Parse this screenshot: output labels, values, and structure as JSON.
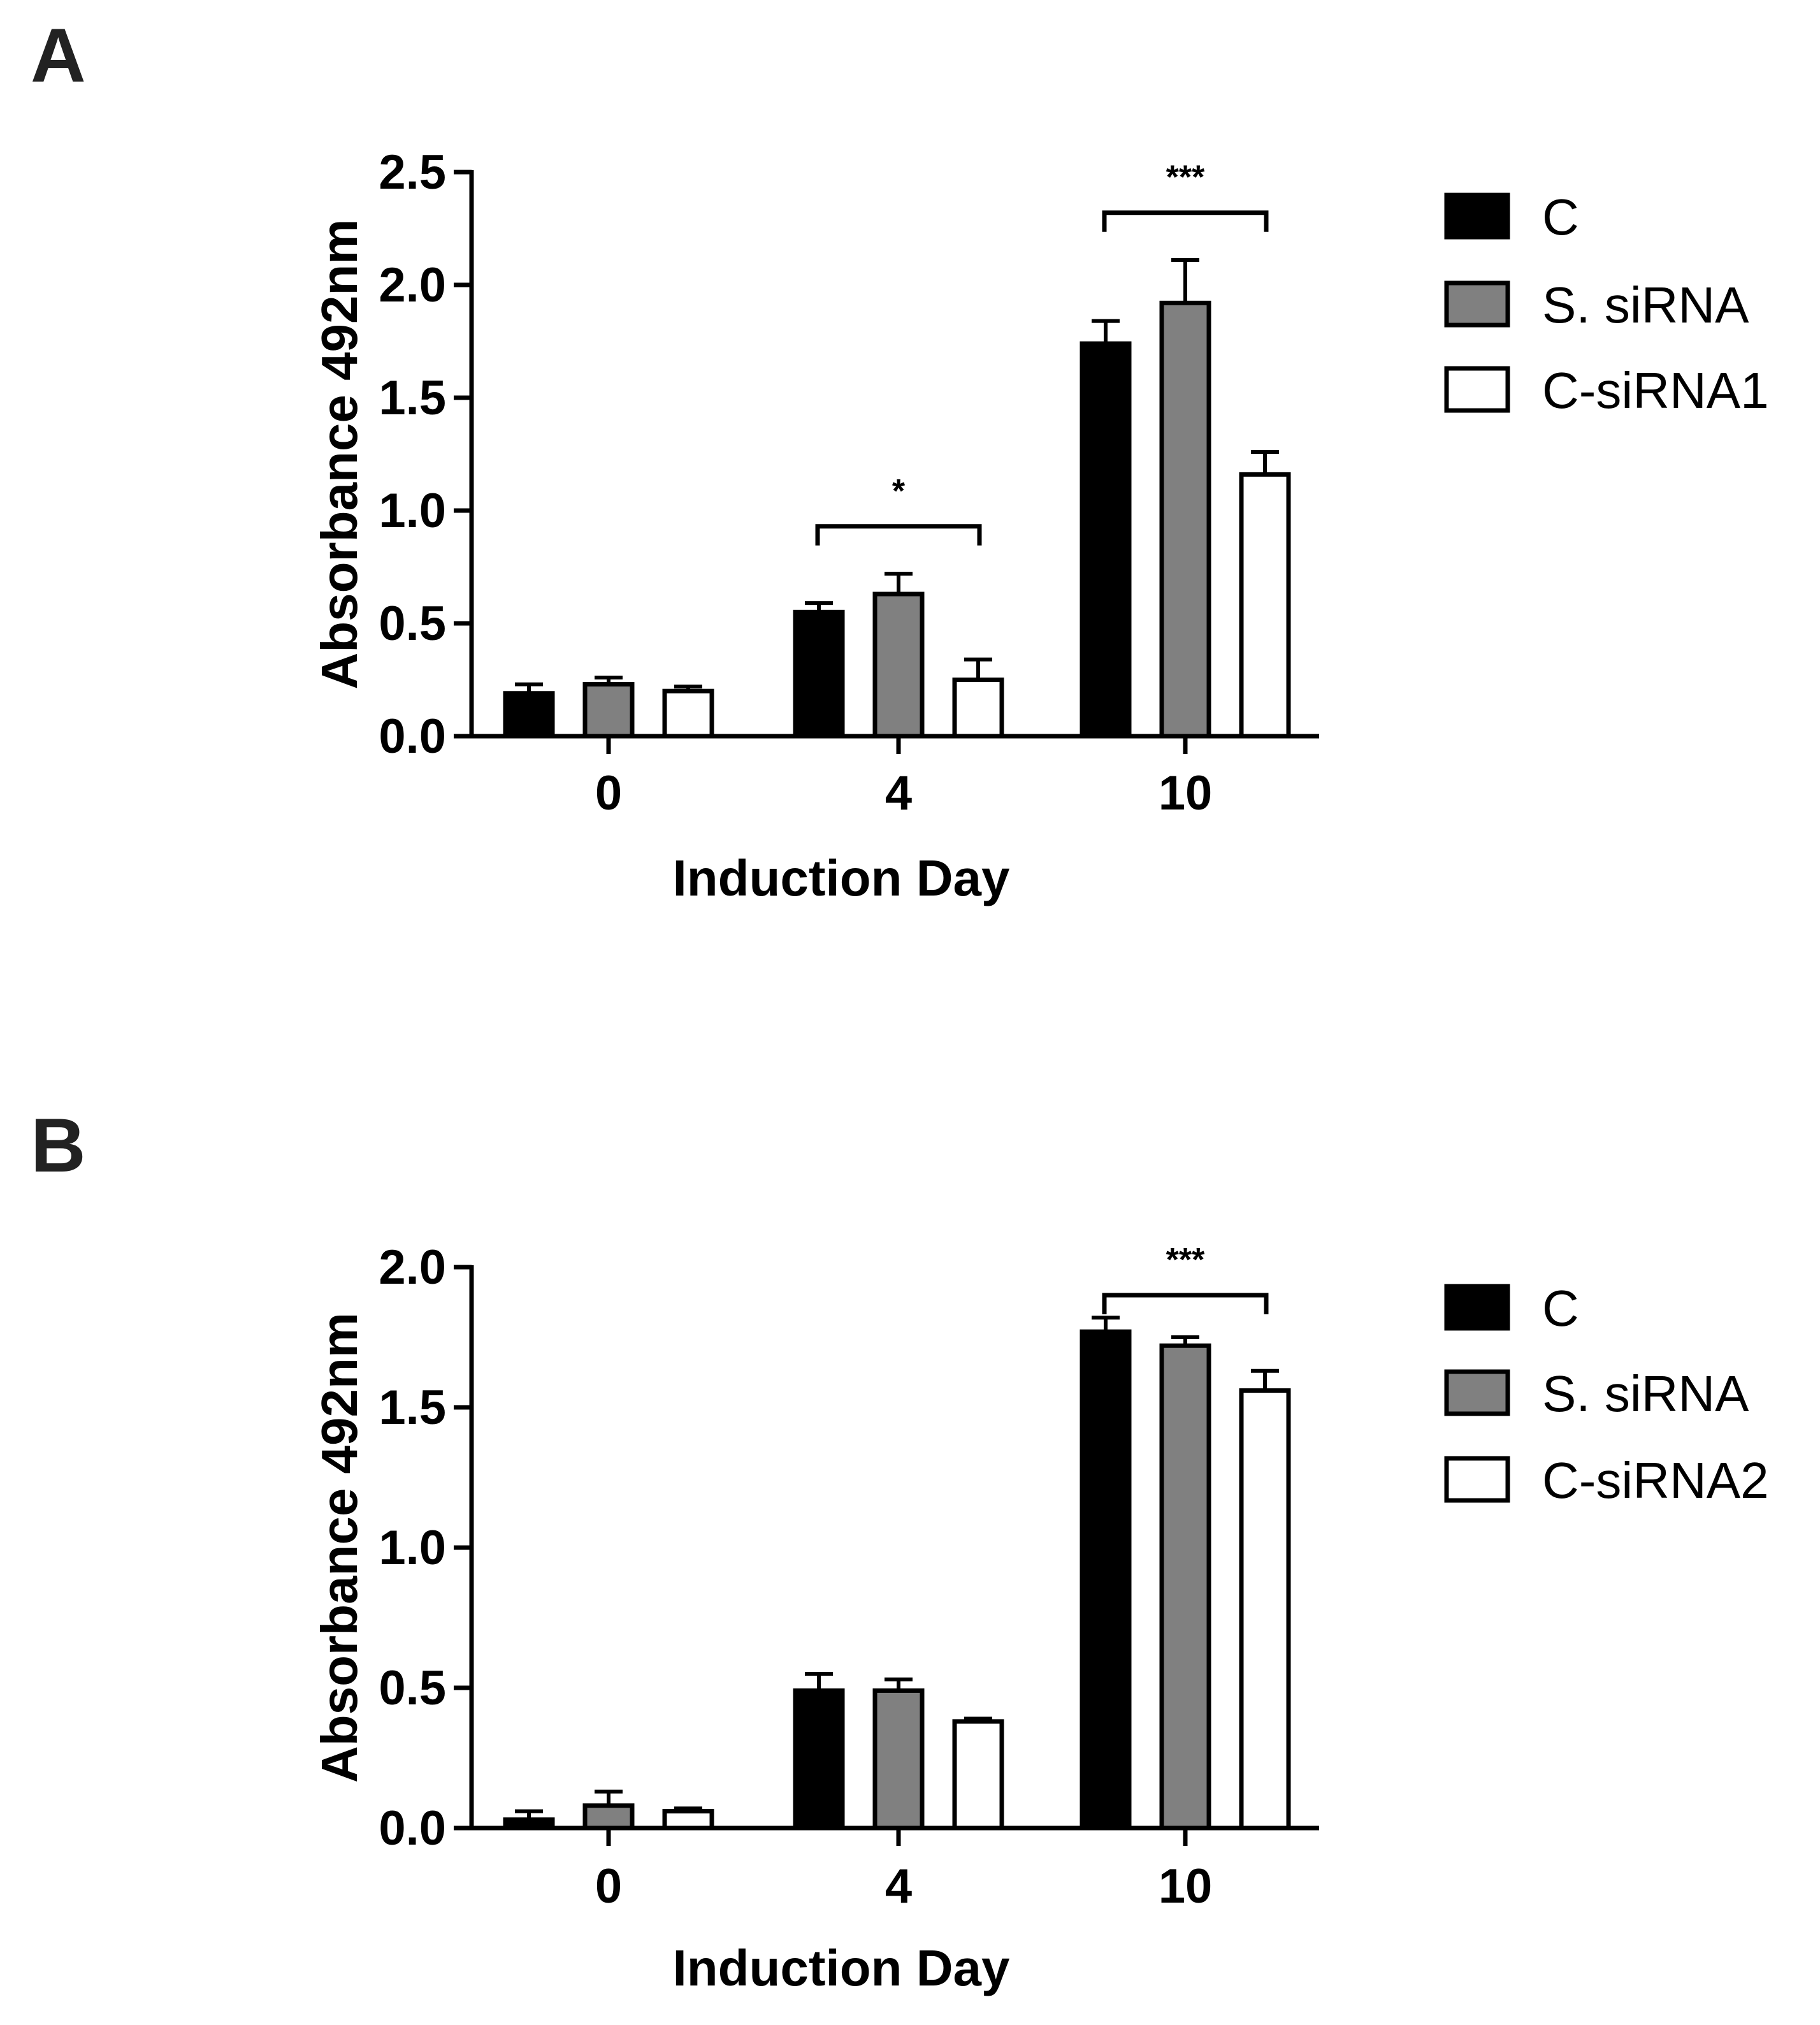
{
  "chart_data": [
    {
      "panel": "A",
      "type": "bar",
      "xlabel": "Induction Day",
      "ylabel": "Absorbance 492nm",
      "ylim": [
        0,
        2.5
      ],
      "yticks": [
        "0.0",
        "0.5",
        "1.0",
        "1.5",
        "2.0",
        "2.5"
      ],
      "categories": [
        "0",
        "4",
        "10"
      ],
      "series": [
        {
          "name": "C",
          "color": "#000000",
          "values": [
            0.19,
            0.55,
            1.74
          ],
          "errors": [
            0.04,
            0.04,
            0.1
          ]
        },
        {
          "name": "S. siRNA",
          "color": "#808080",
          "values": [
            0.23,
            0.63,
            1.92
          ],
          "errors": [
            0.03,
            0.09,
            0.19
          ]
        },
        {
          "name": "C-siRNA1",
          "color": "#ffffff",
          "values": [
            0.2,
            0.25,
            1.16
          ],
          "errors": [
            0.02,
            0.09,
            0.1
          ]
        }
      ],
      "significance": [
        {
          "category": "4",
          "label": "*",
          "bracket_y": 0.93
        },
        {
          "category": "10",
          "label": "***",
          "bracket_y": 2.32
        }
      ],
      "legend": "right",
      "grid": false
    },
    {
      "panel": "B",
      "type": "bar",
      "xlabel": "Induction Day",
      "ylabel": "Absorbance 492nm",
      "ylim": [
        0,
        2.0
      ],
      "yticks": [
        "0.0",
        "0.5",
        "1.0",
        "1.5",
        "2.0"
      ],
      "categories": [
        "0",
        "4",
        "10"
      ],
      "series": [
        {
          "name": "C",
          "color": "#000000",
          "values": [
            0.03,
            0.49,
            1.77
          ],
          "errors": [
            0.03,
            0.06,
            0.05
          ]
        },
        {
          "name": "S. siRNA",
          "color": "#808080",
          "values": [
            0.08,
            0.49,
            1.72
          ],
          "errors": [
            0.05,
            0.04,
            0.03
          ]
        },
        {
          "name": "C-siRNA2",
          "color": "#ffffff",
          "values": [
            0.06,
            0.38,
            1.56
          ],
          "errors": [
            0.01,
            0.01,
            0.07
          ]
        }
      ],
      "significance": [
        {
          "category": "10",
          "label": "***",
          "bracket_y": 1.9
        }
      ],
      "legend": "right",
      "grid": false
    }
  ]
}
